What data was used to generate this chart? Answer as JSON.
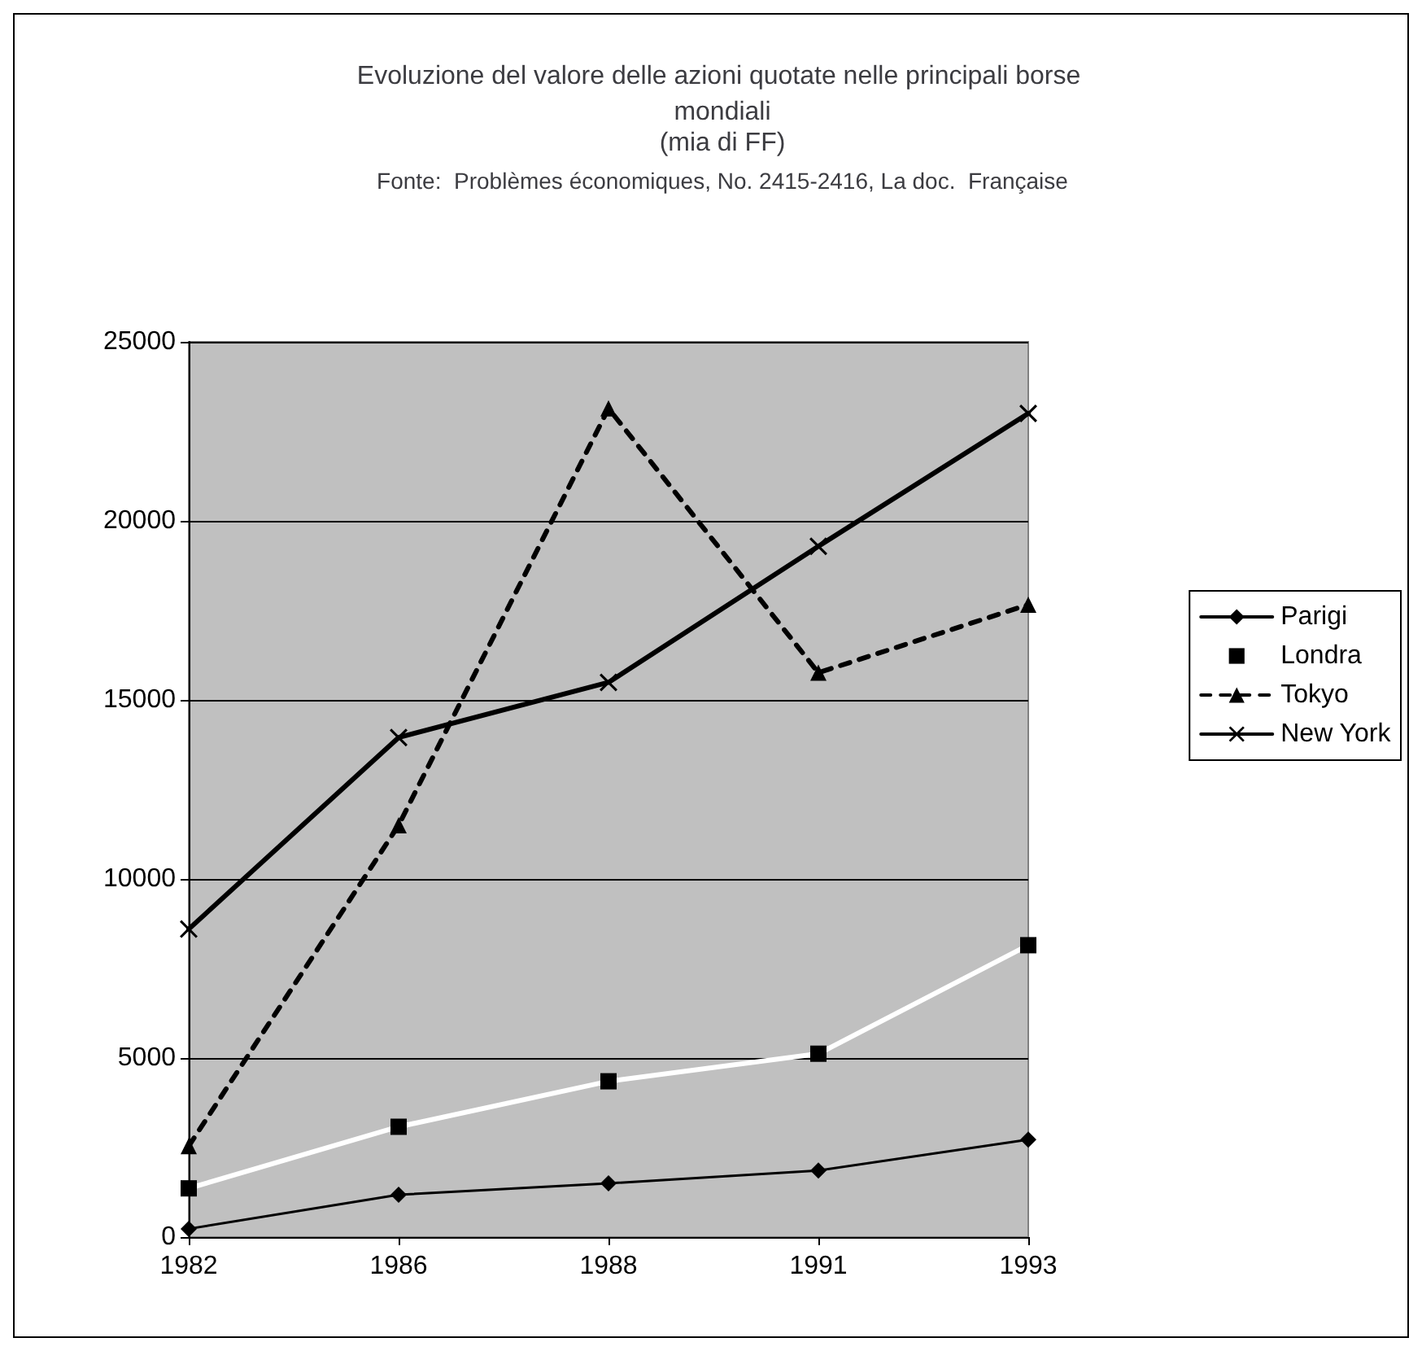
{
  "chart_data": {
    "type": "line",
    "title": "Evoluzione del valore delle azioni quotate nelle principali borse mondiali",
    "subtitle": "(mia di FF)",
    "annotations": [
      "Fonte:  Problèmes économiques, No. 2415-2416, La doc.  Française"
    ],
    "categories": [
      "1982",
      "1986",
      "1988",
      "1991",
      "1993"
    ],
    "series": [
      {
        "name": "Parigi",
        "color": "#000000",
        "marker": "diamond",
        "line_style": "solid",
        "values": [
          230,
          1180,
          1500,
          1860,
          2720
        ]
      },
      {
        "name": "Londra",
        "color": "#ffffff",
        "marker": "square",
        "line_style": "solid",
        "values": [
          1360,
          3080,
          4350,
          5120,
          8150
        ]
      },
      {
        "name": "Tokyo",
        "color": "#000000",
        "marker": "triangle",
        "line_style": "dashed",
        "values": [
          2540,
          11500,
          23140,
          15760,
          17660
        ]
      },
      {
        "name": "New York",
        "color": "#000000",
        "marker": "cross",
        "line_style": "solid",
        "values": [
          8600,
          13950,
          15490,
          19290,
          23000
        ]
      }
    ],
    "ylim": [
      0,
      25000
    ],
    "yticks": [
      0,
      5000,
      10000,
      15000,
      20000,
      25000
    ],
    "grid": "y",
    "legend": "right"
  }
}
